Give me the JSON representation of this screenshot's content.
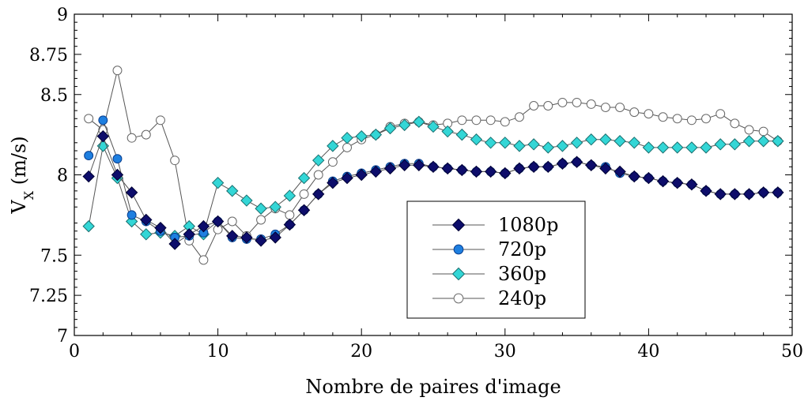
{
  "chart_data": {
    "type": "line",
    "xlabel": "Nombre de paires d'image",
    "ylabel": "V",
    "ylabel_sub": "X",
    "ylabel_unit": " (m/s)",
    "xlim": [
      0,
      50
    ],
    "ylim": [
      7,
      9
    ],
    "x_ticks": [
      0,
      10,
      20,
      30,
      40,
      50
    ],
    "y_ticks": [
      7,
      7.25,
      7.5,
      8,
      8.5,
      8.75,
      9
    ],
    "y_tick_labels": [
      "7",
      "7.25",
      "7.5",
      "8",
      "8.5",
      "8.75",
      "9"
    ],
    "grid": false,
    "legend_position": "bottom-center",
    "series": [
      {
        "name": "1080p",
        "marker": "diamond",
        "fill": "#0d0d6b",
        "stroke": "#000033",
        "x": [
          1,
          2,
          3,
          4,
          5,
          6,
          7,
          8,
          9,
          10,
          11,
          12,
          13,
          14,
          15,
          16,
          17,
          18,
          19,
          20,
          21,
          22,
          23,
          24,
          25,
          26,
          27,
          28,
          29,
          30,
          31,
          32,
          33,
          34,
          35,
          36,
          37,
          38,
          39,
          40,
          41,
          42,
          43,
          44,
          45,
          46,
          47,
          48,
          49
        ],
        "values": [
          7.99,
          8.24,
          8.0,
          7.89,
          7.72,
          7.67,
          7.57,
          7.63,
          7.68,
          7.71,
          7.62,
          7.61,
          7.59,
          7.61,
          7.69,
          7.78,
          7.88,
          7.95,
          7.98,
          8.0,
          8.02,
          8.04,
          8.06,
          8.06,
          8.05,
          8.04,
          8.03,
          8.02,
          8.02,
          8.01,
          8.04,
          8.05,
          8.05,
          8.07,
          8.08,
          8.06,
          8.04,
          8.02,
          7.99,
          7.98,
          7.96,
          7.95,
          7.94,
          7.9,
          7.88,
          7.88,
          7.88,
          7.89,
          7.89
        ]
      },
      {
        "name": "720p",
        "marker": "circle",
        "fill": "#1e7fe0",
        "stroke": "#0a3f8f",
        "x": [
          1,
          2,
          3,
          4,
          5,
          6,
          7,
          8,
          9,
          10,
          11,
          12,
          13,
          14,
          15,
          16,
          17,
          18,
          19,
          20,
          21,
          22,
          23,
          24,
          25,
          26,
          27,
          28,
          29,
          30,
          31,
          32,
          33,
          34,
          35,
          36,
          37,
          38,
          39,
          40,
          41,
          42,
          43,
          44,
          45,
          46,
          47,
          48,
          49
        ],
        "values": [
          8.12,
          8.34,
          8.1,
          7.75,
          7.71,
          7.65,
          7.61,
          7.62,
          7.64,
          7.71,
          7.61,
          7.6,
          7.6,
          7.63,
          7.69,
          7.78,
          7.88,
          7.96,
          7.99,
          8.01,
          8.03,
          8.05,
          8.07,
          8.07,
          8.05,
          8.04,
          8.03,
          8.02,
          8.02,
          8.01,
          8.04,
          8.05,
          8.05,
          8.07,
          8.08,
          8.06,
          8.05,
          8.01,
          7.99,
          7.98,
          7.96,
          7.95,
          7.94,
          7.9,
          7.88,
          7.88,
          7.88,
          7.89,
          7.89
        ]
      },
      {
        "name": "360p",
        "marker": "diamond",
        "fill": "#33d6d6",
        "stroke": "#1a6f6f",
        "x": [
          1,
          2,
          3,
          4,
          5,
          6,
          7,
          8,
          9,
          10,
          11,
          12,
          13,
          14,
          15,
          16,
          17,
          18,
          19,
          20,
          21,
          22,
          23,
          24,
          25,
          26,
          27,
          28,
          29,
          30,
          31,
          32,
          33,
          34,
          35,
          36,
          37,
          38,
          39,
          40,
          41,
          42,
          43,
          44,
          45,
          46,
          47,
          48,
          49
        ],
        "values": [
          7.68,
          8.18,
          7.98,
          7.71,
          7.63,
          7.64,
          7.62,
          7.68,
          7.63,
          7.95,
          7.9,
          7.84,
          7.79,
          7.8,
          7.87,
          7.98,
          8.09,
          8.18,
          8.23,
          8.24,
          8.25,
          8.29,
          8.31,
          8.33,
          8.3,
          8.27,
          8.25,
          8.22,
          8.2,
          8.2,
          8.18,
          8.19,
          8.17,
          8.18,
          8.2,
          8.22,
          8.22,
          8.21,
          8.2,
          8.17,
          8.17,
          8.17,
          8.17,
          8.17,
          8.19,
          8.19,
          8.21,
          8.21,
          8.21
        ]
      },
      {
        "name": "240p",
        "marker": "circle",
        "fill": "#ffffff",
        "stroke": "#666666",
        "x": [
          1,
          2,
          3,
          4,
          5,
          6,
          7,
          8,
          9,
          10,
          11,
          12,
          13,
          14,
          15,
          16,
          17,
          18,
          19,
          20,
          21,
          22,
          23,
          24,
          25,
          26,
          27,
          28,
          29,
          30,
          31,
          32,
          33,
          34,
          35,
          36,
          37,
          38,
          39,
          40,
          41,
          42,
          43,
          44,
          45,
          46,
          47,
          48,
          49
        ],
        "values": [
          8.35,
          8.28,
          8.65,
          8.23,
          8.25,
          8.34,
          8.09,
          7.59,
          7.47,
          7.66,
          7.71,
          7.62,
          7.72,
          7.79,
          7.75,
          7.88,
          8.0,
          8.08,
          8.17,
          8.22,
          8.25,
          8.3,
          8.32,
          8.33,
          8.31,
          8.32,
          8.34,
          8.34,
          8.34,
          8.33,
          8.36,
          8.43,
          8.43,
          8.45,
          8.45,
          8.44,
          8.42,
          8.42,
          8.39,
          8.38,
          8.36,
          8.35,
          8.34,
          8.35,
          8.38,
          8.32,
          8.28,
          8.27,
          8.21
        ]
      }
    ]
  }
}
